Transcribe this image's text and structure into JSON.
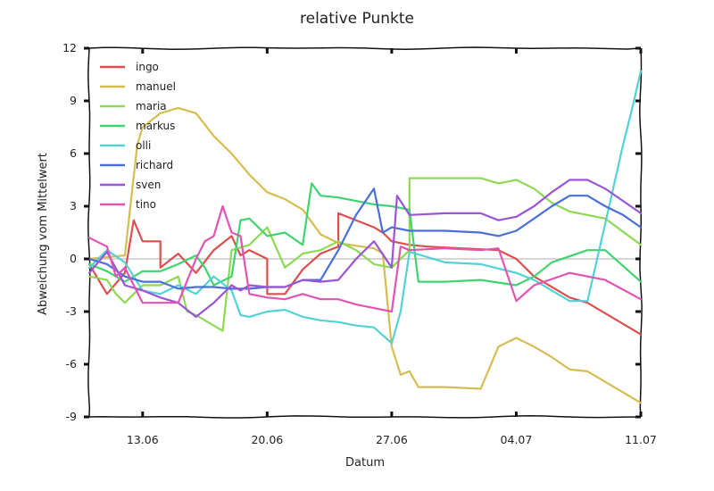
{
  "chart_data": {
    "type": "line",
    "title": "relative Punkte",
    "xlabel": "Datum",
    "ylabel": "Abweichung vom Mittelwert",
    "ylim": [
      -9,
      12
    ],
    "yticks": [
      -9,
      -6,
      -3,
      0,
      3,
      6,
      9,
      12
    ],
    "xlim": [
      "2012-06-10",
      "2012-07-11"
    ],
    "xticks": [
      {
        "date": "2012-06-13",
        "label": "13.06"
      },
      {
        "date": "2012-06-20",
        "label": "20.06"
      },
      {
        "date": "2012-06-27",
        "label": "27.06"
      },
      {
        "date": "2012-07-04",
        "label": "04.07"
      },
      {
        "date": "2012-07-11",
        "label": "11.07"
      }
    ],
    "legend_position": "top-left",
    "grid": false,
    "zero_line_color": "#c8c8c8",
    "series": [
      {
        "name": "ingo",
        "color": "#dc4f4f",
        "points": [
          [
            "2012-06-10",
            -0.3
          ],
          [
            "2012-06-11",
            -2.0
          ],
          [
            "2012-06-12",
            -0.8
          ],
          [
            "2012-06-12.5",
            2.2
          ],
          [
            "2012-06-13",
            1.0
          ],
          [
            "2012-06-14",
            1.0
          ],
          [
            "2012-06-14",
            -0.5
          ],
          [
            "2012-06-15",
            0.3
          ],
          [
            "2012-06-16",
            -0.8
          ],
          [
            "2012-06-17",
            0.5
          ],
          [
            "2012-06-18",
            1.3
          ],
          [
            "2012-06-18.5",
            0.2
          ],
          [
            "2012-06-19",
            0.5
          ],
          [
            "2012-06-20",
            0.0
          ],
          [
            "2012-06-20",
            -2.0
          ],
          [
            "2012-06-21",
            -2.0
          ],
          [
            "2012-06-22",
            -0.6
          ],
          [
            "2012-06-23",
            0.3
          ],
          [
            "2012-06-24",
            0.7
          ],
          [
            "2012-06-24",
            2.6
          ],
          [
            "2012-06-26",
            1.8
          ],
          [
            "2012-06-26.5",
            1.5
          ],
          [
            "2012-06-27",
            1.0
          ],
          [
            "2012-06-28",
            0.8
          ],
          [
            "2012-06-29",
            0.7
          ],
          [
            "2012-07-01",
            0.6
          ],
          [
            "2012-07-03",
            0.5
          ],
          [
            "2012-07-04",
            0.0
          ],
          [
            "2012-07-05",
            -1.0
          ],
          [
            "2012-07-07",
            -2.2
          ],
          [
            "2012-07-08",
            -2.5
          ],
          [
            "2012-07-11",
            -4.3
          ]
        ]
      },
      {
        "name": "manuel",
        "color": "#d6bd50",
        "points": [
          [
            "2012-06-10",
            0.0
          ],
          [
            "2012-06-12",
            0.2
          ],
          [
            "2012-06-12.7",
            6.5
          ],
          [
            "2012-06-13",
            7.5
          ],
          [
            "2012-06-14",
            8.3
          ],
          [
            "2012-06-15",
            8.6
          ],
          [
            "2012-06-16",
            8.3
          ],
          [
            "2012-06-17",
            7.0
          ],
          [
            "2012-06-18",
            6.0
          ],
          [
            "2012-06-19",
            4.8
          ],
          [
            "2012-06-20",
            3.8
          ],
          [
            "2012-06-21",
            3.4
          ],
          [
            "2012-06-22",
            2.8
          ],
          [
            "2012-06-23",
            1.4
          ],
          [
            "2012-06-24",
            0.9
          ],
          [
            "2012-06-26",
            0.6
          ],
          [
            "2012-06-26.5",
            0.3
          ],
          [
            "2012-06-27",
            -5.0
          ],
          [
            "2012-06-27.5",
            -6.6
          ],
          [
            "2012-06-28",
            -6.4
          ],
          [
            "2012-06-28.5",
            -7.3
          ],
          [
            "2012-06-30",
            -7.3
          ],
          [
            "2012-07-02",
            -7.4
          ],
          [
            "2012-07-03",
            -5.0
          ],
          [
            "2012-07-04",
            -4.5
          ],
          [
            "2012-07-05",
            -5.0
          ],
          [
            "2012-07-06",
            -5.6
          ],
          [
            "2012-07-07",
            -6.3
          ],
          [
            "2012-07-08",
            -6.4
          ],
          [
            "2012-07-09",
            -7.0
          ],
          [
            "2012-07-10",
            -7.6
          ],
          [
            "2012-07-11",
            -8.2
          ]
        ]
      },
      {
        "name": "maria",
        "color": "#8ed953",
        "points": [
          [
            "2012-06-10",
            -1.0
          ],
          [
            "2012-06-11",
            -1.2
          ],
          [
            "2012-06-11.5",
            -2.0
          ],
          [
            "2012-06-12",
            -2.5
          ],
          [
            "2012-06-13",
            -1.5
          ],
          [
            "2012-06-14",
            -1.5
          ],
          [
            "2012-06-15",
            -1.0
          ],
          [
            "2012-06-15.5",
            -3.0
          ],
          [
            "2012-06-16",
            -3.2
          ],
          [
            "2012-06-17",
            -3.8
          ],
          [
            "2012-06-17.5",
            -4.1
          ],
          [
            "2012-06-18",
            0.5
          ],
          [
            "2012-06-19",
            0.8
          ],
          [
            "2012-06-20",
            1.8
          ],
          [
            "2012-06-21",
            -0.5
          ],
          [
            "2012-06-22",
            0.3
          ],
          [
            "2012-06-23",
            0.5
          ],
          [
            "2012-06-24",
            1.0
          ],
          [
            "2012-06-25",
            0.5
          ],
          [
            "2012-06-26",
            -0.3
          ],
          [
            "2012-06-27",
            -0.5
          ],
          [
            "2012-06-28",
            0.5
          ],
          [
            "2012-06-28",
            4.6
          ],
          [
            "2012-06-30",
            4.6
          ],
          [
            "2012-07-02",
            4.6
          ],
          [
            "2012-07-03",
            4.3
          ],
          [
            "2012-07-04",
            4.5
          ],
          [
            "2012-07-05",
            4.0
          ],
          [
            "2012-07-06",
            3.2
          ],
          [
            "2012-07-07",
            2.7
          ],
          [
            "2012-07-09",
            2.3
          ],
          [
            "2012-07-11",
            0.8
          ]
        ]
      },
      {
        "name": "markus",
        "color": "#3fd46f",
        "points": [
          [
            "2012-06-10",
            -0.3
          ],
          [
            "2012-06-11",
            -0.7
          ],
          [
            "2012-06-12",
            -1.3
          ],
          [
            "2012-06-13",
            -0.7
          ],
          [
            "2012-06-14",
            -0.7
          ],
          [
            "2012-06-15",
            -0.3
          ],
          [
            "2012-06-16",
            0.2
          ],
          [
            "2012-06-16.5",
            -0.5
          ],
          [
            "2012-06-17",
            -1.5
          ],
          [
            "2012-06-18",
            -1.0
          ],
          [
            "2012-06-18.5",
            2.2
          ],
          [
            "2012-06-19",
            2.3
          ],
          [
            "2012-06-20",
            1.3
          ],
          [
            "2012-06-21",
            1.5
          ],
          [
            "2012-06-22",
            0.8
          ],
          [
            "2012-06-22.5",
            4.3
          ],
          [
            "2012-06-23",
            3.6
          ],
          [
            "2012-06-24",
            3.5
          ],
          [
            "2012-06-25",
            3.3
          ],
          [
            "2012-06-26",
            3.1
          ],
          [
            "2012-06-27",
            3.0
          ],
          [
            "2012-06-28",
            2.8
          ],
          [
            "2012-06-28.5",
            -1.3
          ],
          [
            "2012-06-30",
            -1.3
          ],
          [
            "2012-07-02",
            -1.2
          ],
          [
            "2012-07-04",
            -1.5
          ],
          [
            "2012-07-05",
            -1.0
          ],
          [
            "2012-07-06",
            -0.2
          ],
          [
            "2012-07-08",
            0.5
          ],
          [
            "2012-07-09",
            0.5
          ],
          [
            "2012-07-10",
            -0.4
          ],
          [
            "2012-07-11",
            -1.3
          ]
        ]
      },
      {
        "name": "olli",
        "color": "#52d2d6",
        "points": [
          [
            "2012-06-10",
            -0.5
          ],
          [
            "2012-06-11",
            0.5
          ],
          [
            "2012-06-12",
            -0.2
          ],
          [
            "2012-06-13",
            -1.8
          ],
          [
            "2012-06-14",
            -2.0
          ],
          [
            "2012-06-15",
            -1.5
          ],
          [
            "2012-06-16",
            -2.0
          ],
          [
            "2012-06-17",
            -1.0
          ],
          [
            "2012-06-18",
            -1.8
          ],
          [
            "2012-06-18.5",
            -3.2
          ],
          [
            "2012-06-19",
            -3.3
          ],
          [
            "2012-06-20",
            -3.0
          ],
          [
            "2012-06-21",
            -2.9
          ],
          [
            "2012-06-22",
            -3.3
          ],
          [
            "2012-06-23",
            -3.5
          ],
          [
            "2012-06-24",
            -3.6
          ],
          [
            "2012-06-25",
            -3.8
          ],
          [
            "2012-06-26",
            -3.9
          ],
          [
            "2012-06-27",
            -4.8
          ],
          [
            "2012-06-27.5",
            -3.0
          ],
          [
            "2012-06-28",
            0.4
          ],
          [
            "2012-06-30",
            -0.2
          ],
          [
            "2012-07-02",
            -0.3
          ],
          [
            "2012-07-04",
            -0.8
          ],
          [
            "2012-07-05",
            -1.2
          ],
          [
            "2012-07-06",
            -1.8
          ],
          [
            "2012-07-07",
            -2.4
          ],
          [
            "2012-07-08",
            -2.4
          ],
          [
            "2012-07-09",
            2.0
          ],
          [
            "2012-07-10",
            6.5
          ],
          [
            "2012-07-10.5",
            8.5
          ],
          [
            "2012-07-11",
            10.7
          ]
        ]
      },
      {
        "name": "richard",
        "color": "#4a6fd8",
        "points": [
          [
            "2012-06-10",
            0.0
          ],
          [
            "2012-06-11",
            -0.3
          ],
          [
            "2012-06-12",
            -1.0
          ],
          [
            "2012-06-13",
            -1.3
          ],
          [
            "2012-06-14",
            -1.3
          ],
          [
            "2012-06-15",
            -1.7
          ],
          [
            "2012-06-16",
            -1.6
          ],
          [
            "2012-06-17",
            -1.6
          ],
          [
            "2012-06-18",
            -1.7
          ],
          [
            "2012-06-19",
            -1.7
          ],
          [
            "2012-06-20",
            -1.6
          ],
          [
            "2012-06-21",
            -1.6
          ],
          [
            "2012-06-22",
            -1.2
          ],
          [
            "2012-06-23",
            -1.2
          ],
          [
            "2012-06-24",
            0.5
          ],
          [
            "2012-06-25",
            2.5
          ],
          [
            "2012-06-26",
            4.0
          ],
          [
            "2012-06-26.5",
            1.5
          ],
          [
            "2012-06-27",
            1.8
          ],
          [
            "2012-06-28",
            1.6
          ],
          [
            "2012-06-28",
            1.6
          ],
          [
            "2012-06-30",
            1.6
          ],
          [
            "2012-07-02",
            1.5
          ],
          [
            "2012-07-03",
            1.3
          ],
          [
            "2012-07-04",
            1.6
          ],
          [
            "2012-07-05",
            2.3
          ],
          [
            "2012-07-06",
            3.0
          ],
          [
            "2012-07-07",
            3.6
          ],
          [
            "2012-07-08",
            3.6
          ],
          [
            "2012-07-09",
            3.0
          ],
          [
            "2012-07-10",
            2.5
          ],
          [
            "2012-07-11",
            1.8
          ]
        ]
      },
      {
        "name": "sven",
        "color": "#9a55d6",
        "points": [
          [
            "2012-06-10",
            -0.8
          ],
          [
            "2012-06-11",
            0.4
          ],
          [
            "2012-06-12",
            -1.5
          ],
          [
            "2012-06-13",
            -1.8
          ],
          [
            "2012-06-14",
            -2.2
          ],
          [
            "2012-06-15",
            -2.5
          ],
          [
            "2012-06-16",
            -3.3
          ],
          [
            "2012-06-17",
            -2.5
          ],
          [
            "2012-06-18",
            -1.5
          ],
          [
            "2012-06-18.5",
            -1.8
          ],
          [
            "2012-06-19",
            -1.5
          ],
          [
            "2012-06-20",
            -1.6
          ],
          [
            "2012-06-21",
            -1.6
          ],
          [
            "2012-06-22",
            -1.2
          ],
          [
            "2012-06-23",
            -1.3
          ],
          [
            "2012-06-24",
            -1.2
          ],
          [
            "2012-06-25",
            0.0
          ],
          [
            "2012-06-26",
            1.0
          ],
          [
            "2012-06-27",
            -0.5
          ],
          [
            "2012-06-27.3",
            3.6
          ],
          [
            "2012-06-28",
            2.5
          ],
          [
            "2012-06-30",
            2.6
          ],
          [
            "2012-07-02",
            2.6
          ],
          [
            "2012-07-03",
            2.2
          ],
          [
            "2012-07-04",
            2.4
          ],
          [
            "2012-07-05",
            3.0
          ],
          [
            "2012-07-06",
            3.8
          ],
          [
            "2012-07-07",
            4.5
          ],
          [
            "2012-07-08",
            4.5
          ],
          [
            "2012-07-09",
            4.0
          ],
          [
            "2012-07-10",
            3.3
          ],
          [
            "2012-07-11",
            2.6
          ]
        ]
      },
      {
        "name": "tino",
        "color": "#de55b3",
        "points": [
          [
            "2012-06-10",
            1.2
          ],
          [
            "2012-06-11",
            0.7
          ],
          [
            "2012-06-11.5",
            -1.0
          ],
          [
            "2012-06-12",
            -0.5
          ],
          [
            "2012-06-13",
            -2.5
          ],
          [
            "2012-06-14",
            -2.5
          ],
          [
            "2012-06-15",
            -2.5
          ],
          [
            "2012-06-16",
            0.0
          ],
          [
            "2012-06-16.5",
            1.0
          ],
          [
            "2012-06-17",
            1.3
          ],
          [
            "2012-06-17.5",
            3.0
          ],
          [
            "2012-06-18",
            1.5
          ],
          [
            "2012-06-18.5",
            1.3
          ],
          [
            "2012-06-19",
            -2.0
          ],
          [
            "2012-06-20",
            -2.2
          ],
          [
            "2012-06-21",
            -2.3
          ],
          [
            "2012-06-22",
            -2.0
          ],
          [
            "2012-06-23",
            -2.3
          ],
          [
            "2012-06-24",
            -2.3
          ],
          [
            "2012-06-25",
            -2.6
          ],
          [
            "2012-06-26",
            -2.8
          ],
          [
            "2012-06-27",
            -3.0
          ],
          [
            "2012-06-27.5",
            0.7
          ],
          [
            "2012-06-28",
            0.5
          ],
          [
            "2012-06-30",
            0.6
          ],
          [
            "2012-07-02",
            0.5
          ],
          [
            "2012-07-03",
            0.6
          ],
          [
            "2012-07-04",
            -2.4
          ],
          [
            "2012-07-05",
            -1.5
          ],
          [
            "2012-07-07",
            -0.8
          ],
          [
            "2012-07-09",
            -1.2
          ],
          [
            "2012-07-11",
            -2.3
          ]
        ]
      }
    ]
  }
}
